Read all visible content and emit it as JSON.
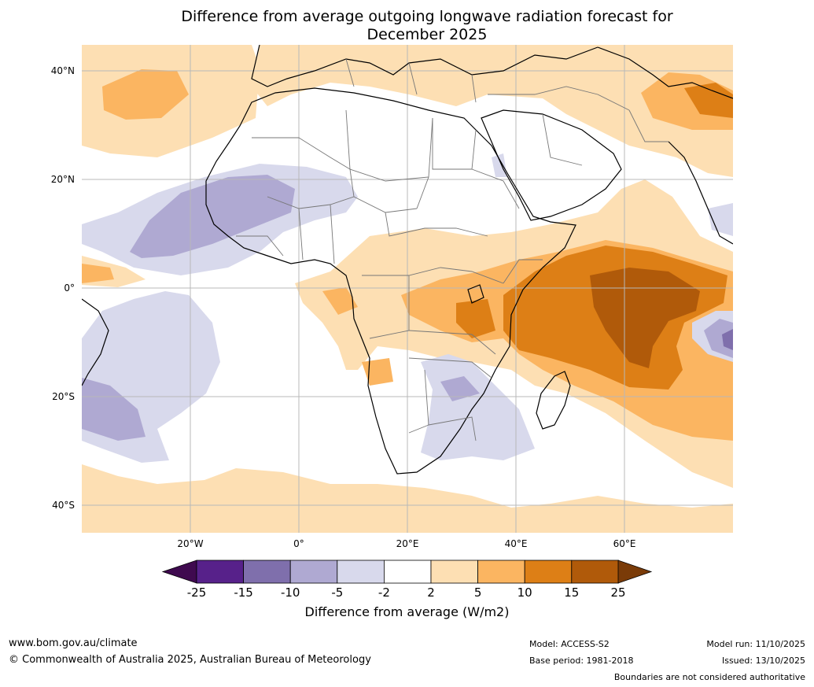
{
  "title": {
    "line1": "Difference from average outgoing longwave radiation forecast for",
    "line2": "December 2025"
  },
  "map": {
    "region": "Africa and surrounding oceans",
    "lat_labels": [
      "40°N",
      "20°N",
      "0°",
      "20°S",
      "40°S"
    ],
    "lon_labels": [
      "20°W",
      "0°",
      "20°E",
      "40°E",
      "60°E"
    ]
  },
  "colorbar": {
    "ticks": [
      "-25",
      "-15",
      "-10",
      "-5",
      "-2",
      "2",
      "5",
      "10",
      "15",
      "25"
    ],
    "colors": [
      "#3f0a4f",
      "#57218a",
      "#7f6fac",
      "#afa9d2",
      "#d8d9ec",
      "#ffffff",
      "#fddfb3",
      "#fbb561",
      "#dd7f16",
      "#b05a0a",
      "#7a3b08"
    ],
    "title": "Difference from average (W/m2)"
  },
  "footer": {
    "website": "www.bom.gov.au/climate",
    "copyright": "© Commonwealth of Australia 2025, Australian Bureau of Meteorology",
    "model": "Model: ACCESS-S2",
    "base_period": "Base period: 1981-2018",
    "model_run": "Model run: 11/10/2025",
    "issued": "Issued: 13/10/2025",
    "disclaimer": "Boundaries are not considered authoritative"
  }
}
